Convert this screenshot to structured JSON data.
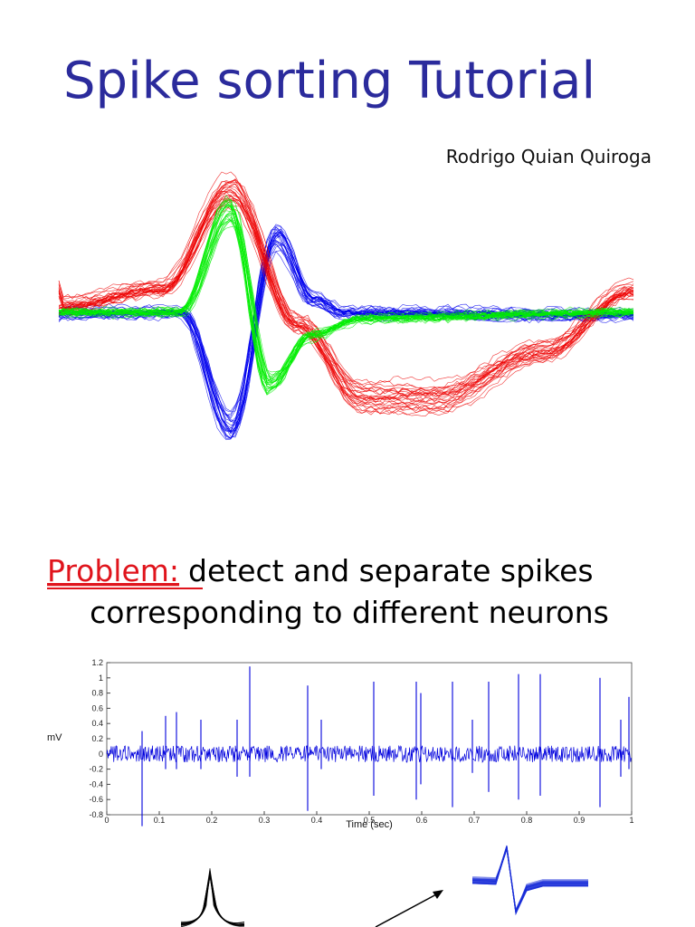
{
  "header": {
    "title": "Spike sorting Tutorial",
    "author": "Rodrigo Quian Quiroga"
  },
  "problem": {
    "label": "Problem:",
    "line1": "detect and separate spikes",
    "line2": "corresponding to different neurons"
  },
  "signal_plot": {
    "y_label": "mV",
    "x_label": "Time (sec)",
    "xlim": [
      0,
      1
    ],
    "ylim": [
      -0.8,
      1.2
    ],
    "xticks": [
      0,
      0.1,
      0.2,
      0.3,
      0.4,
      0.5,
      0.6,
      0.7,
      0.8,
      0.9,
      1
    ],
    "yticks": [
      -0.8,
      -0.6,
      -0.4,
      -0.2,
      0,
      0.2,
      0.4,
      0.6,
      0.8,
      1,
      1.2
    ]
  }
}
